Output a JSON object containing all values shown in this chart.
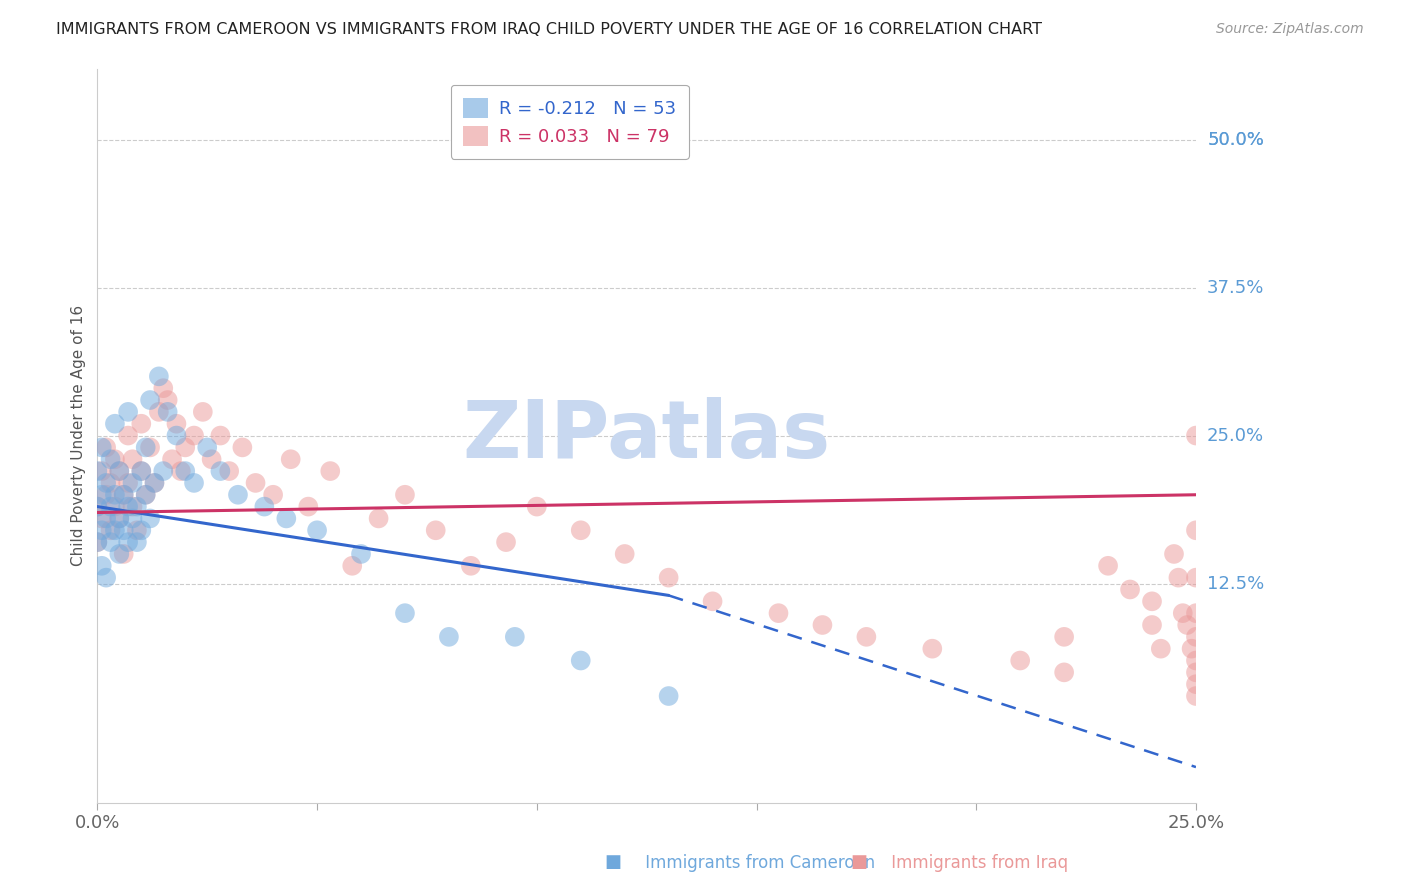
{
  "title": "IMMIGRANTS FROM CAMEROON VS IMMIGRANTS FROM IRAQ CHILD POVERTY UNDER THE AGE OF 16 CORRELATION CHART",
  "source": "Source: ZipAtlas.com",
  "ylabel": "Child Poverty Under the Age of 16",
  "right_yticks": [
    "50.0%",
    "37.5%",
    "25.0%",
    "12.5%"
  ],
  "right_ytick_vals": [
    0.5,
    0.375,
    0.25,
    0.125
  ],
  "xmin": 0.0,
  "xmax": 0.25,
  "ymin": -0.06,
  "ymax": 0.56,
  "legend_R_cameroon": "-0.212",
  "legend_N_cameroon": "53",
  "legend_R_iraq": "0.033",
  "legend_N_iraq": "79",
  "cameroon_color": "#6fa8dc",
  "iraq_color": "#ea9999",
  "trendline_cameroon_color": "#3366cc",
  "trendline_iraq_color": "#cc3366",
  "watermark_color": "#c8d8f0",
  "grid_color": "#cccccc",
  "title_color": "#222222",
  "right_axis_color": "#5b9bd5",
  "cameroon_scatter_x": [
    0.0,
    0.0,
    0.0,
    0.001,
    0.001,
    0.001,
    0.001,
    0.002,
    0.002,
    0.002,
    0.003,
    0.003,
    0.003,
    0.004,
    0.004,
    0.004,
    0.005,
    0.005,
    0.005,
    0.006,
    0.006,
    0.007,
    0.007,
    0.007,
    0.008,
    0.008,
    0.009,
    0.009,
    0.01,
    0.01,
    0.011,
    0.011,
    0.012,
    0.012,
    0.013,
    0.014,
    0.015,
    0.016,
    0.018,
    0.02,
    0.022,
    0.025,
    0.028,
    0.032,
    0.038,
    0.043,
    0.05,
    0.06,
    0.07,
    0.08,
    0.095,
    0.11,
    0.13
  ],
  "cameroon_scatter_y": [
    0.19,
    0.22,
    0.16,
    0.2,
    0.17,
    0.24,
    0.14,
    0.18,
    0.21,
    0.13,
    0.19,
    0.16,
    0.23,
    0.2,
    0.17,
    0.26,
    0.18,
    0.15,
    0.22,
    0.17,
    0.2,
    0.19,
    0.16,
    0.27,
    0.18,
    0.21,
    0.16,
    0.19,
    0.17,
    0.22,
    0.2,
    0.24,
    0.18,
    0.28,
    0.21,
    0.3,
    0.22,
    0.27,
    0.25,
    0.22,
    0.21,
    0.24,
    0.22,
    0.2,
    0.19,
    0.18,
    0.17,
    0.15,
    0.1,
    0.08,
    0.08,
    0.06,
    0.03
  ],
  "iraq_scatter_x": [
    0.0,
    0.0,
    0.001,
    0.001,
    0.002,
    0.002,
    0.003,
    0.003,
    0.004,
    0.004,
    0.005,
    0.005,
    0.006,
    0.006,
    0.007,
    0.007,
    0.008,
    0.008,
    0.009,
    0.01,
    0.01,
    0.011,
    0.012,
    0.013,
    0.014,
    0.015,
    0.016,
    0.017,
    0.018,
    0.019,
    0.02,
    0.022,
    0.024,
    0.026,
    0.028,
    0.03,
    0.033,
    0.036,
    0.04,
    0.044,
    0.048,
    0.053,
    0.058,
    0.064,
    0.07,
    0.077,
    0.085,
    0.093,
    0.1,
    0.11,
    0.12,
    0.13,
    0.14,
    0.155,
    0.165,
    0.175,
    0.19,
    0.21,
    0.22,
    0.22,
    0.23,
    0.235,
    0.24,
    0.24,
    0.242,
    0.245,
    0.246,
    0.247,
    0.248,
    0.249,
    0.25,
    0.25,
    0.25,
    0.25,
    0.25,
    0.25,
    0.25,
    0.25,
    0.25
  ],
  "iraq_scatter_y": [
    0.19,
    0.16,
    0.22,
    0.18,
    0.2,
    0.24,
    0.21,
    0.17,
    0.19,
    0.23,
    0.18,
    0.22,
    0.2,
    0.15,
    0.21,
    0.25,
    0.19,
    0.23,
    0.17,
    0.22,
    0.26,
    0.2,
    0.24,
    0.21,
    0.27,
    0.29,
    0.28,
    0.23,
    0.26,
    0.22,
    0.24,
    0.25,
    0.27,
    0.23,
    0.25,
    0.22,
    0.24,
    0.21,
    0.2,
    0.23,
    0.19,
    0.22,
    0.14,
    0.18,
    0.2,
    0.17,
    0.14,
    0.16,
    0.19,
    0.17,
    0.15,
    0.13,
    0.11,
    0.1,
    0.09,
    0.08,
    0.07,
    0.06,
    0.05,
    0.08,
    0.14,
    0.12,
    0.11,
    0.09,
    0.07,
    0.15,
    0.13,
    0.1,
    0.09,
    0.07,
    0.25,
    0.17,
    0.13,
    0.1,
    0.08,
    0.06,
    0.05,
    0.04,
    0.03
  ],
  "cameroon_trend_x0": 0.0,
  "cameroon_trend_x1": 0.13,
  "cameroon_trend_xdash1": 0.13,
  "cameroon_trend_xdash2": 0.25,
  "cameroon_trend_y0": 0.19,
  "cameroon_trend_y1": 0.115,
  "cameroon_trend_ydash1": 0.115,
  "cameroon_trend_ydash2": -0.03,
  "iraq_trend_x0": 0.0,
  "iraq_trend_x1": 0.25,
  "iraq_trend_y0": 0.185,
  "iraq_trend_y1": 0.2
}
